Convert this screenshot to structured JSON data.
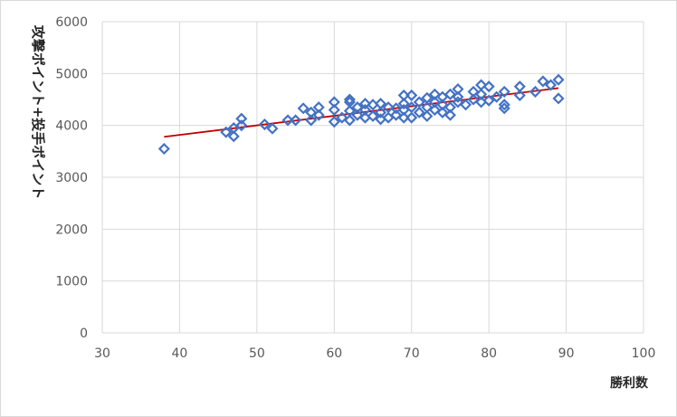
{
  "chart_data": {
    "type": "scatter",
    "title": "",
    "xlabel": "勝利数",
    "ylabel": "攻撃ポイント+投手ポイント",
    "xlim": [
      30,
      100
    ],
    "ylim": [
      0,
      6000
    ],
    "x_ticks": [
      "30",
      "40",
      "50",
      "60",
      "70",
      "80",
      "90",
      "100"
    ],
    "y_ticks": [
      "0",
      "1000",
      "2000",
      "3000",
      "4000",
      "5000",
      "6000"
    ],
    "grid": true,
    "legend": "none",
    "marker_color": "#4472C4",
    "trendline_color": "#C00000",
    "series": [
      {
        "points": [
          [
            38,
            3550
          ],
          [
            46,
            3870
          ],
          [
            47,
            3790
          ],
          [
            47,
            3950
          ],
          [
            48,
            4000
          ],
          [
            48,
            4130
          ],
          [
            51,
            4020
          ],
          [
            52,
            3940
          ],
          [
            54,
            4100
          ],
          [
            55,
            4100
          ],
          [
            56,
            4330
          ],
          [
            57,
            4100
          ],
          [
            57,
            4250
          ],
          [
            58,
            4350
          ],
          [
            58,
            4200
          ],
          [
            60,
            4070
          ],
          [
            60,
            4300
          ],
          [
            60,
            4450
          ],
          [
            61,
            4150
          ],
          [
            62,
            4100
          ],
          [
            62,
            4280
          ],
          [
            62,
            4450
          ],
          [
            62,
            4500
          ],
          [
            63,
            4200
          ],
          [
            63,
            4350
          ],
          [
            64,
            4150
          ],
          [
            64,
            4300
          ],
          [
            64,
            4420
          ],
          [
            65,
            4180
          ],
          [
            65,
            4400
          ],
          [
            66,
            4120
          ],
          [
            66,
            4250
          ],
          [
            66,
            4420
          ],
          [
            67,
            4150
          ],
          [
            67,
            4350
          ],
          [
            68,
            4200
          ],
          [
            68,
            4330
          ],
          [
            69,
            4150
          ],
          [
            69,
            4300
          ],
          [
            69,
            4420
          ],
          [
            69,
            4580
          ],
          [
            70,
            4150
          ],
          [
            70,
            4350
          ],
          [
            70,
            4580
          ],
          [
            71,
            4250
          ],
          [
            71,
            4450
          ],
          [
            72,
            4180
          ],
          [
            72,
            4350
          ],
          [
            72,
            4530
          ],
          [
            73,
            4300
          ],
          [
            73,
            4450
          ],
          [
            73,
            4600
          ],
          [
            74,
            4250
          ],
          [
            74,
            4400
          ],
          [
            74,
            4550
          ],
          [
            75,
            4200
          ],
          [
            75,
            4350
          ],
          [
            75,
            4600
          ],
          [
            76,
            4450
          ],
          [
            76,
            4550
          ],
          [
            76,
            4700
          ],
          [
            77,
            4400
          ],
          [
            78,
            4500
          ],
          [
            78,
            4650
          ],
          [
            79,
            4450
          ],
          [
            79,
            4600
          ],
          [
            79,
            4780
          ],
          [
            80,
            4480
          ],
          [
            80,
            4750
          ],
          [
            81,
            4550
          ],
          [
            82,
            4330
          ],
          [
            82,
            4400
          ],
          [
            82,
            4650
          ],
          [
            84,
            4580
          ],
          [
            84,
            4750
          ],
          [
            86,
            4650
          ],
          [
            87,
            4850
          ],
          [
            88,
            4780
          ],
          [
            89,
            4880
          ],
          [
            89,
            4520
          ]
        ]
      }
    ],
    "trendline": {
      "type": "linear",
      "x": [
        38,
        89
      ],
      "y": [
        3780,
        4720
      ]
    }
  }
}
